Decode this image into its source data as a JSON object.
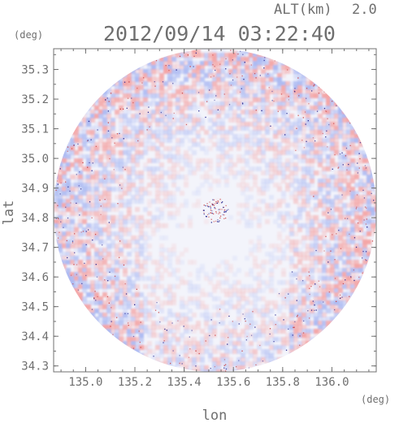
{
  "header": {
    "altitude_label": "ALT(km)",
    "altitude_value": "2.0",
    "timestamp": "2012/09/14 03:22:40",
    "y_unit": "(deg)",
    "x_unit": "(deg)"
  },
  "chart_data": {
    "type": "heatmap",
    "title": "2012/09/14 03:22:40",
    "xlabel": "lon",
    "ylabel": "lat",
    "x_unit": "(deg)",
    "y_unit": "(deg)",
    "xlim": [
      134.87,
      136.18
    ],
    "ylim": [
      34.28,
      35.37
    ],
    "x_ticks": [
      135.0,
      135.2,
      135.4,
      135.6,
      135.8,
      136.0
    ],
    "y_ticks": [
      34.3,
      34.4,
      34.5,
      34.6,
      34.7,
      34.8,
      34.9,
      35.0,
      35.1,
      35.2,
      35.3
    ],
    "x_tick_labels": [
      "135.0",
      "135.2",
      "135.4",
      "135.6",
      "135.8",
      "136.0"
    ],
    "y_tick_labels": [
      "34.3",
      "34.4",
      "34.5",
      "34.6",
      "34.7",
      "34.8",
      "34.9",
      "35.0",
      "35.1",
      "35.2",
      "35.3"
    ],
    "coverage": {
      "shape": "circle",
      "center": [
        135.525,
        34.825
      ],
      "radius_deg_lon": 0.655,
      "radius_deg_lat": 0.545
    },
    "colors": {
      "positive": "#f4a3a3",
      "negative": "#a9b8f2",
      "background": "#f3f4fb",
      "speckle": "#1a1a8a",
      "axis": "#707070",
      "text": "#6f6f6f"
    },
    "grid": false
  }
}
